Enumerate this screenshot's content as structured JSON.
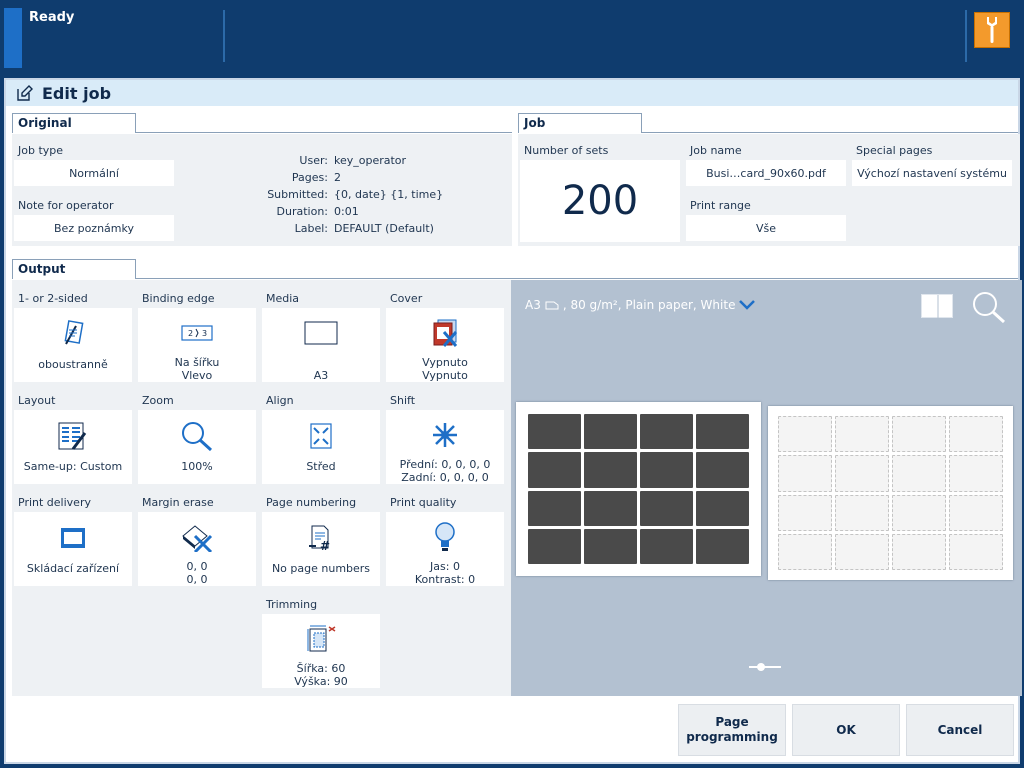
{
  "status": {
    "text": "Ready"
  },
  "title": "Edit job",
  "original": {
    "tab": "Original",
    "job_type": {
      "label": "Job type",
      "value": "Normální"
    },
    "note": {
      "label": "Note for operator",
      "value": "Bez poznámky"
    },
    "info": [
      {
        "key": "User:",
        "value": "key_operator"
      },
      {
        "key": "Pages:",
        "value": "2"
      },
      {
        "key": "Submitted:",
        "value": "{0, date} {1, time}"
      },
      {
        "key": "Duration:",
        "value": "0:01"
      },
      {
        "key": "Label:",
        "value": "DEFAULT (Default)"
      }
    ]
  },
  "job": {
    "tab": "Job",
    "sets": {
      "label": "Number of sets",
      "value": "200"
    },
    "job_name": {
      "label": "Job name",
      "value": "Busi…card_90x60.pdf"
    },
    "special_pages": {
      "label": "Special pages",
      "value": "Výchozí nastavení systému"
    },
    "print_range": {
      "label": "Print range",
      "value": "Vše"
    }
  },
  "output": {
    "tab": "Output",
    "tiles": [
      {
        "label": "1- or 2-sided",
        "v1": "oboustranně",
        "v2": "",
        "icon": "two-sided-icon"
      },
      {
        "label": "Binding edge",
        "v1": "Na šířku",
        "v2": "Vlevo",
        "icon": "binding-edge-icon"
      },
      {
        "label": "Media",
        "v1": "A3",
        "v2": "",
        "icon": "media-icon"
      },
      {
        "label": "Cover",
        "v1": "Vypnuto",
        "v2": "Vypnuto",
        "icon": "cover-icon"
      },
      {
        "label": "Layout",
        "v1": "Same-up: Custom",
        "v2": "",
        "icon": "layout-icon"
      },
      {
        "label": "Zoom",
        "v1": "100%",
        "v2": "",
        "icon": "zoom-icon"
      },
      {
        "label": "Align",
        "v1": "Střed",
        "v2": "",
        "icon": "align-icon"
      },
      {
        "label": "Shift",
        "v1": "Přední: 0, 0, 0, 0",
        "v2": "Zadní: 0, 0, 0, 0",
        "icon": "shift-icon"
      },
      {
        "label": "Print delivery",
        "v1": "Skládací zařízení",
        "v2": "",
        "icon": "print-delivery-icon"
      },
      {
        "label": "Margin erase",
        "v1": "0, 0",
        "v2": "0, 0",
        "icon": "margin-erase-icon"
      },
      {
        "label": "Page numbering",
        "v1": "No page numbers",
        "v2": "",
        "icon": "page-numbering-icon"
      },
      {
        "label": "Print quality",
        "v1": "Jas: 0",
        "v2": "Kontrast: 0",
        "icon": "print-quality-icon"
      },
      {
        "label": "Trimming",
        "v1": "Šířka: 60",
        "v2": "Výška: 90",
        "icon": "trimming-icon"
      }
    ]
  },
  "preview": {
    "media": "A3",
    "media_rest": ", 80 g/m², Plain paper, White"
  },
  "buttons": {
    "page_programming_1": "Page",
    "page_programming_2": "programming",
    "ok": "OK",
    "cancel": "Cancel"
  },
  "colors": {
    "topbar": "#0f3c6e",
    "accent": "#1e6fc7",
    "tool": "#f39a2c",
    "icon_blue": "#1e6fc7",
    "preview_bg": "#b3c1d1"
  }
}
